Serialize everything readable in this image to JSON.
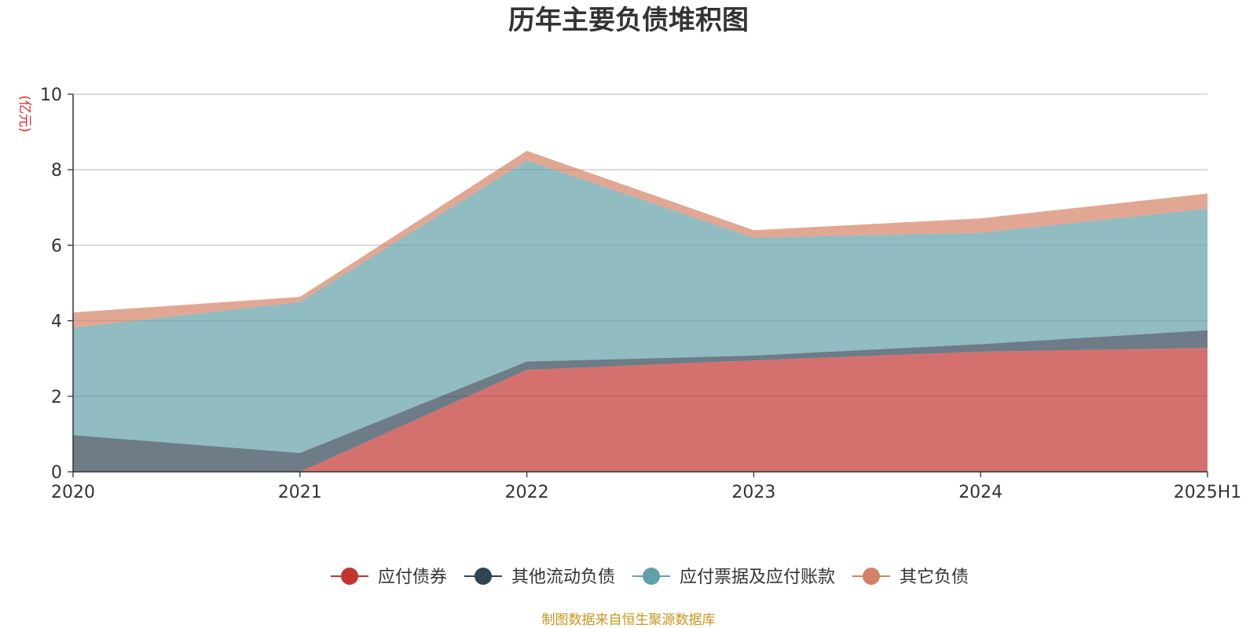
{
  "chart_data": {
    "type": "area",
    "stacked": true,
    "title": "历年主要负债堆积图",
    "unit_label": "(亿元)",
    "categories": [
      "2020",
      "2021",
      "2022",
      "2023",
      "2024",
      "2025H1"
    ],
    "ylim": [
      0,
      10
    ],
    "yticks": [
      0,
      2,
      4,
      6,
      8,
      10
    ],
    "grid": true,
    "legend_position": "bottom",
    "series": [
      {
        "name": "应付债券",
        "color": "#c23531",
        "values": [
          0,
          0,
          2.7,
          2.95,
          3.18,
          3.28
        ]
      },
      {
        "name": "其他流动负债",
        "color": "#2f4554",
        "values": [
          0.97,
          0.5,
          0.22,
          0.13,
          0.2,
          0.47
        ]
      },
      {
        "name": "应付票据及应付账款",
        "color": "#61a0a8",
        "values": [
          2.85,
          4.0,
          5.33,
          3.12,
          2.95,
          3.22
        ]
      },
      {
        "name": "其它负债",
        "color": "#d48265",
        "values": [
          0.4,
          0.13,
          0.25,
          0.2,
          0.38,
          0.4
        ]
      }
    ],
    "source_note": "制图数据来自恒生聚源数据库"
  }
}
